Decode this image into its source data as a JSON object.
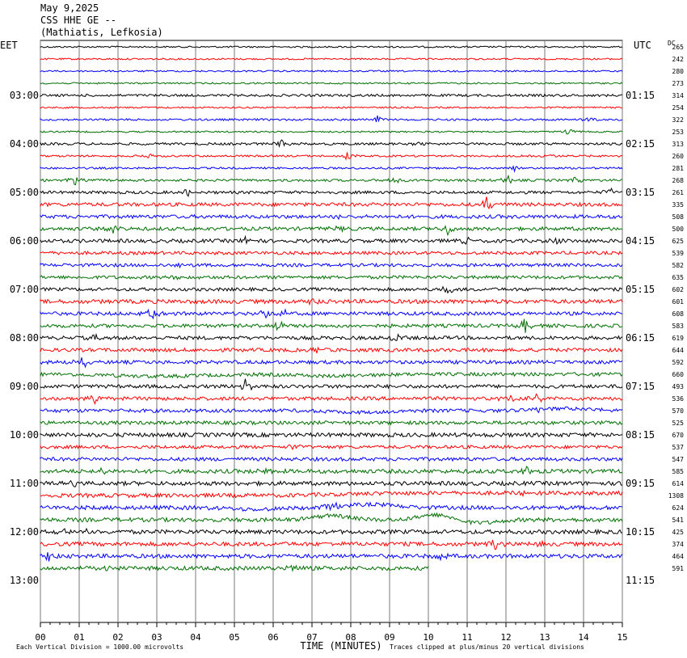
{
  "header": {
    "date": "May 9,2025",
    "station": "CSS HHE GE --",
    "location": "(Mathiatis, Lefkosia)"
  },
  "chart_data": {
    "type": "line",
    "title": "May 9,2025",
    "left_zone": "EET",
    "right_zone": "UTC",
    "dc_label": "DC",
    "xlabel": "TIME (MINUTES)",
    "x_ticks": [
      "00",
      "01",
      "02",
      "03",
      "04",
      "05",
      "06",
      "07",
      "08",
      "09",
      "10",
      "11",
      "12",
      "13",
      "14",
      "15"
    ],
    "xlim": [
      0,
      15
    ],
    "left_hour_labels": [
      {
        "row": 4,
        "label": "03:00"
      },
      {
        "row": 8,
        "label": "04:00"
      },
      {
        "row": 12,
        "label": "05:00"
      },
      {
        "row": 16,
        "label": "06:00"
      },
      {
        "row": 20,
        "label": "07:00"
      },
      {
        "row": 24,
        "label": "08:00"
      },
      {
        "row": 28,
        "label": "09:00"
      },
      {
        "row": 32,
        "label": "10:00"
      },
      {
        "row": 36,
        "label": "11:00"
      },
      {
        "row": 40,
        "label": "12:00"
      },
      {
        "row": 44,
        "label": "13:00"
      }
    ],
    "right_hour_labels": [
      {
        "row": 4,
        "label": "01:15"
      },
      {
        "row": 8,
        "label": "02:15"
      },
      {
        "row": 12,
        "label": "03:15"
      },
      {
        "row": 16,
        "label": "04:15"
      },
      {
        "row": 20,
        "label": "05:15"
      },
      {
        "row": 24,
        "label": "06:15"
      },
      {
        "row": 28,
        "label": "07:15"
      },
      {
        "row": 32,
        "label": "08:15"
      },
      {
        "row": 36,
        "label": "09:15"
      },
      {
        "row": 40,
        "label": "10:15"
      },
      {
        "row": 44,
        "label": "11:15"
      }
    ],
    "dc_values": [
      "265",
      "242",
      "280",
      "273",
      "314",
      "254",
      "322",
      "253",
      "313",
      "260",
      "281",
      "268",
      "261",
      "335",
      "508",
      "500",
      "625",
      "539",
      "582",
      "635",
      "602",
      "601",
      "608",
      "583",
      "619",
      "644",
      "592",
      "660",
      "493",
      "536",
      "570",
      "525",
      "670",
      "537",
      "547",
      "585",
      "614",
      "1308",
      "624",
      "541",
      "425",
      "374",
      "464",
      "591"
    ],
    "trace_colors": [
      "#000000",
      "#ff0000",
      "#0000ff",
      "#007000"
    ],
    "amplitudes": [
      1,
      1,
      1,
      1,
      1.5,
      1,
      1.2,
      1,
      1.5,
      1.2,
      1.2,
      1.5,
      1.8,
      2.2,
      2.2,
      2.2,
      2.2,
      2,
      2,
      2,
      2,
      2.5,
      2.2,
      2.2,
      2.2,
      2.2,
      2.2,
      2.2,
      2.2,
      2.2,
      2.2,
      2.2,
      2.5,
      2,
      2.2,
      2.5,
      2.5,
      2.5,
      2.5,
      2.5,
      2.5,
      2.5,
      2.5,
      2.5
    ],
    "events": [
      {
        "row": 6,
        "min": 8.7,
        "amp": 7
      },
      {
        "row": 6,
        "min": 14.2,
        "amp": 4
      },
      {
        "row": 7,
        "min": 13.6,
        "amp": 5
      },
      {
        "row": 8,
        "min": 6.2,
        "amp": 7
      },
      {
        "row": 8,
        "min": 9.8,
        "amp": 3
      },
      {
        "row": 9,
        "min": 2.8,
        "amp": 5
      },
      {
        "row": 9,
        "min": 7.9,
        "amp": 6
      },
      {
        "row": 9,
        "min": 13.1,
        "amp": 5
      },
      {
        "row": 10,
        "min": 12.2,
        "amp": 4
      },
      {
        "row": 11,
        "min": 0.9,
        "amp": 6
      },
      {
        "row": 11,
        "min": 9.1,
        "amp": 6
      },
      {
        "row": 11,
        "min": 12.1,
        "amp": 7
      },
      {
        "row": 11,
        "min": 13.8,
        "amp": 4
      },
      {
        "row": 12,
        "min": 3.8,
        "amp": 6
      },
      {
        "row": 12,
        "min": 14.7,
        "amp": 5
      },
      {
        "row": 13,
        "min": 11.5,
        "amp": 12
      },
      {
        "row": 14,
        "min": 7.7,
        "amp": 6
      },
      {
        "row": 15,
        "min": 1.9,
        "amp": 6
      },
      {
        "row": 15,
        "min": 7.6,
        "amp": 7
      },
      {
        "row": 15,
        "min": 10.5,
        "amp": 8
      },
      {
        "row": 16,
        "min": 5.3,
        "amp": 6
      },
      {
        "row": 16,
        "min": 11.0,
        "amp": 7
      },
      {
        "row": 16,
        "min": 13.3,
        "amp": 6
      },
      {
        "row": 18,
        "min": 3.6,
        "amp": 4
      },
      {
        "row": 19,
        "min": 3.6,
        "amp": 5
      },
      {
        "row": 20,
        "min": 10.5,
        "amp": 7
      },
      {
        "row": 21,
        "min": 7.0,
        "amp": 5
      },
      {
        "row": 22,
        "min": 2.9,
        "amp": 8
      },
      {
        "row": 22,
        "min": 5.8,
        "amp": 6
      },
      {
        "row": 22,
        "min": 6.3,
        "amp": 8
      },
      {
        "row": 23,
        "min": 6.1,
        "amp": 8
      },
      {
        "row": 23,
        "min": 12.5,
        "amp": 9
      },
      {
        "row": 24,
        "min": 1.4,
        "amp": 4
      },
      {
        "row": 24,
        "min": 9.2,
        "amp": 8
      },
      {
        "row": 25,
        "min": 7.1,
        "amp": 5
      },
      {
        "row": 26,
        "min": 1.1,
        "amp": 8
      },
      {
        "row": 28,
        "min": 5.3,
        "amp": 11
      },
      {
        "row": 29,
        "min": 1.4,
        "amp": 5
      },
      {
        "row": 29,
        "min": 12.1,
        "amp": 7
      },
      {
        "row": 29,
        "min": 12.8,
        "amp": 6
      },
      {
        "row": 30,
        "min": 12.8,
        "amp": 4
      },
      {
        "row": 33,
        "min": 6.5,
        "amp": 6
      },
      {
        "row": 35,
        "min": 1.6,
        "amp": 6
      },
      {
        "row": 35,
        "min": 5.7,
        "amp": 7
      },
      {
        "row": 35,
        "min": 12.5,
        "amp": 7
      },
      {
        "row": 36,
        "min": 0.8,
        "amp": 5
      },
      {
        "row": 37,
        "min": 12.6,
        "amp": 5
      },
      {
        "row": 38,
        "min": 7.5,
        "amp": 8
      },
      {
        "row": 40,
        "min": 0.5,
        "amp": 8
      },
      {
        "row": 40,
        "min": 1.2,
        "amp": 6
      },
      {
        "row": 41,
        "min": 11.7,
        "amp": 7
      },
      {
        "row": 41,
        "min": 12.8,
        "amp": 7
      },
      {
        "row": 42,
        "min": 0.2,
        "amp": 7
      },
      {
        "row": 42,
        "min": 10.3,
        "amp": 6
      },
      {
        "row": 43,
        "min": 1.7,
        "amp": 6
      },
      {
        "row": 43,
        "min": 6.5,
        "amp": 6
      }
    ],
    "swells": [
      {
        "row": 27,
        "min": 3.0,
        "amp": 2.5,
        "w": 1.5
      },
      {
        "row": 27,
        "min": 7.5,
        "amp": 2,
        "w": 1.2
      },
      {
        "row": 30,
        "min": 8.2,
        "amp": 2,
        "w": 1.0
      },
      {
        "row": 30,
        "min": 13.5,
        "amp": -2.5,
        "w": 1.0
      },
      {
        "row": 38,
        "min": 8.5,
        "amp": -4,
        "w": 0.8
      },
      {
        "row": 38,
        "min": 5.5,
        "amp": 2,
        "w": 1.0
      },
      {
        "row": 39,
        "min": 7.5,
        "amp": -5,
        "w": 0.6
      },
      {
        "row": 39,
        "min": 10.2,
        "amp": -6,
        "w": 0.6
      },
      {
        "row": 39,
        "min": 11.3,
        "amp": 4,
        "w": 0.6
      }
    ],
    "last_row_end_min": 10.0,
    "footer_left": "Each Vertical Division = 1000.00 microvolts",
    "footer_right": "Traces clipped at plus/minus 20 vertical divisions"
  }
}
